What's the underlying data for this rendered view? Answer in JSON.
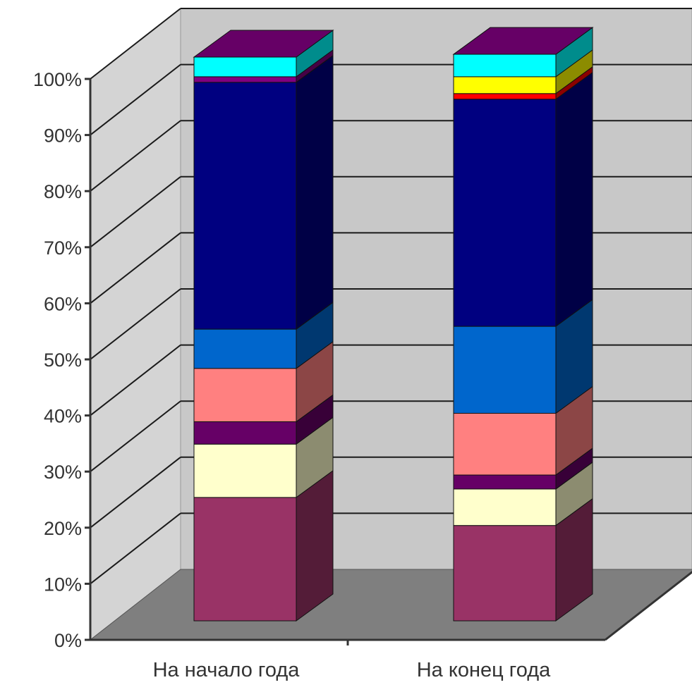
{
  "chart_data": {
    "type": "bar",
    "stacked": true,
    "three_d": true,
    "normalized": true,
    "categories": [
      "На начало года",
      "На конец года"
    ],
    "y_ticks": [
      "0%",
      "10%",
      "20%",
      "30%",
      "40%",
      "50%",
      "60%",
      "70%",
      "80%",
      "90%",
      "100%"
    ],
    "ylim": [
      0,
      100
    ],
    "grid": true,
    "legend": "none",
    "title": "",
    "xlabel": "",
    "ylabel": "",
    "series": [
      {
        "color": "#993366",
        "values": [
          22,
          17
        ]
      },
      {
        "color": "#FFFFCC",
        "values": [
          9.5,
          6.5
        ]
      },
      {
        "color": "#660066",
        "values": [
          4,
          2.5
        ]
      },
      {
        "color": "#FF8080",
        "values": [
          9.5,
          11
        ]
      },
      {
        "color": "#0066CC",
        "values": [
          7,
          15.5
        ]
      },
      {
        "color": "#000080",
        "values": [
          44,
          40.5
        ]
      },
      {
        "color": "#800080",
        "values": [
          1,
          0
        ]
      },
      {
        "color": "#FF0000",
        "values": [
          0,
          1
        ]
      },
      {
        "color": "#FFFF00",
        "values": [
          0,
          3
        ]
      },
      {
        "color": "#00FFFF",
        "values": [
          3.5,
          4
        ]
      }
    ]
  }
}
